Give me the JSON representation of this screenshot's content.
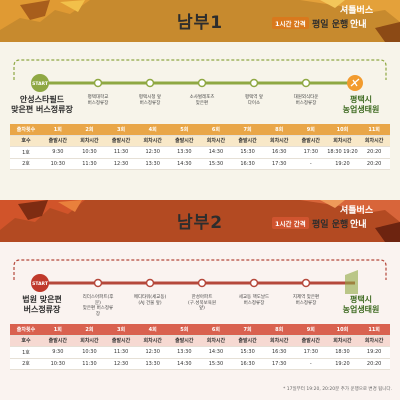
{
  "colors": {
    "top_accent": "#c78a2e",
    "bottom_accent": "#b34a22",
    "top_route": "#8fa843",
    "bottom_route": "#b5483b"
  },
  "top": {
    "title": "남부1",
    "badge": "1시간 간격",
    "service_name": "셔틀버스",
    "service_type": "평일 운행",
    "service_guide": "안내",
    "start_tag": "START",
    "origin": [
      "안성스타필드",
      "맞은편 버스정류장"
    ],
    "destination": [
      "평택시",
      "농업생태원"
    ],
    "stops": [
      [
        "평택대학교",
        "버스정류장"
      ],
      [
        "평택시청 앞",
        "버스정류장"
      ],
      [
        "소사벌레포츠",
        "맞은편"
      ],
      [
        "평택역 앞",
        "다이소"
      ],
      [
        "대원외식타운",
        "버스정류장"
      ]
    ],
    "table": {
      "rows": [
        [
          "출차횟수",
          "1회",
          "2회",
          "3회",
          "4회",
          "5회",
          "6회",
          "7회",
          "8회",
          "9회",
          "10회",
          "11회"
        ],
        [
          "호수",
          "출발시간",
          "회차시간",
          "출발시간",
          "회차시간",
          "출발시간",
          "회차시간",
          "출발시간",
          "회차시간",
          "출발시간",
          "회차시간",
          "회차시간"
        ],
        [
          "1호",
          "9:30",
          "10:30",
          "11:30",
          "12:30",
          "13:30",
          "14:30",
          "15:30",
          "16:30",
          "17:30",
          "18:30 19:20",
          "20:20"
        ],
        [
          "2호",
          "10:30",
          "11:30",
          "12:30",
          "13:30",
          "14:30",
          "15:30",
          "16:30",
          "17:30",
          "-",
          "19:20",
          "20:20"
        ]
      ]
    }
  },
  "bottom": {
    "title": "남부2",
    "badge": "1시간 간격",
    "service_name": "셔틀버스",
    "service_type": "평일 운행",
    "service_guide": "안내",
    "start_tag": "START",
    "origin": [
      "법원 맞은편",
      "버스정류장"
    ],
    "destination": [
      "평택시",
      "농업생태원"
    ],
    "stops": [
      [
        "리더스아파트(후문)",
        "맞은편 버스정류장"
      ],
      [
        "메디타워(세교동)",
        "(AJ 건물 앞)"
      ],
      [
        "한성아파트",
        "(구.성북보육원 앞)"
      ],
      [
        "세교동 핵도날드",
        "버스정류장"
      ],
      [
        "지제역 맞은편",
        "버스정류장"
      ]
    ],
    "table": {
      "rows": [
        [
          "출차횟수",
          "1회",
          "2회",
          "3회",
          "4회",
          "5회",
          "6회",
          "7회",
          "8회",
          "9회",
          "10회",
          "11회"
        ],
        [
          "호수",
          "출발시간",
          "회차시간",
          "출발시간",
          "회차시간",
          "출발시간",
          "회차시간",
          "출발시간",
          "회차시간",
          "출발시간",
          "회차시간",
          "회차시간"
        ],
        [
          "1호",
          "9:30",
          "10:30",
          "11:30",
          "12:30",
          "13:30",
          "14:30",
          "15:30",
          "16:30",
          "17:30",
          "18:30",
          "19:20"
        ],
        [
          "2호",
          "10:30",
          "11:30",
          "12:30",
          "13:30",
          "14:30",
          "15:30",
          "16:30",
          "17:30",
          "-",
          "19:20",
          "20:20"
        ]
      ]
    },
    "note": "* 17일부터 19:20, 20:20분 추가 운행으로 변경 됩니다."
  }
}
